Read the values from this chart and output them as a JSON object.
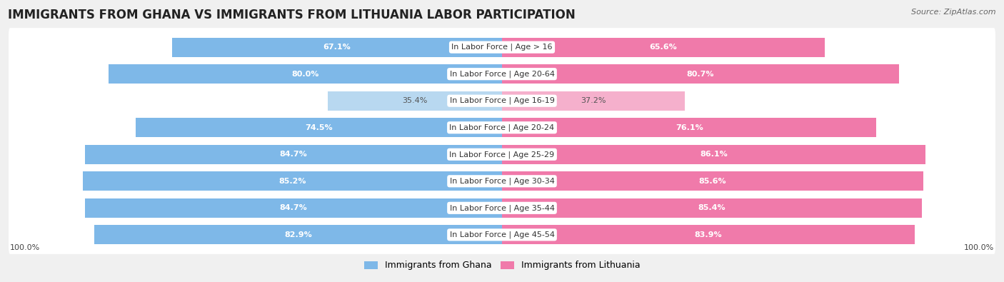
{
  "title": "IMMIGRANTS FROM GHANA VS IMMIGRANTS FROM LITHUANIA LABOR PARTICIPATION",
  "source": "Source: ZipAtlas.com",
  "categories": [
    "In Labor Force | Age > 16",
    "In Labor Force | Age 20-64",
    "In Labor Force | Age 16-19",
    "In Labor Force | Age 20-24",
    "In Labor Force | Age 25-29",
    "In Labor Force | Age 30-34",
    "In Labor Force | Age 35-44",
    "In Labor Force | Age 45-54"
  ],
  "ghana_values": [
    67.1,
    80.0,
    35.4,
    74.5,
    84.7,
    85.2,
    84.7,
    82.9
  ],
  "lithuania_values": [
    65.6,
    80.7,
    37.2,
    76.1,
    86.1,
    85.6,
    85.4,
    83.9
  ],
  "ghana_color": "#7eb8e8",
  "ghana_color_light": "#b8d8f0",
  "lithuania_color": "#f07aaa",
  "lithuania_color_light": "#f5b0cc",
  "background_color": "#f0f0f0",
  "row_bg_even": "#e8e8e8",
  "row_bg_odd": "#f5f5f5",
  "max_value": 100.0,
  "bar_height": 0.72,
  "title_fontsize": 12,
  "label_fontsize": 8,
  "value_fontsize": 8,
  "legend_fontsize": 9,
  "source_fontsize": 8
}
